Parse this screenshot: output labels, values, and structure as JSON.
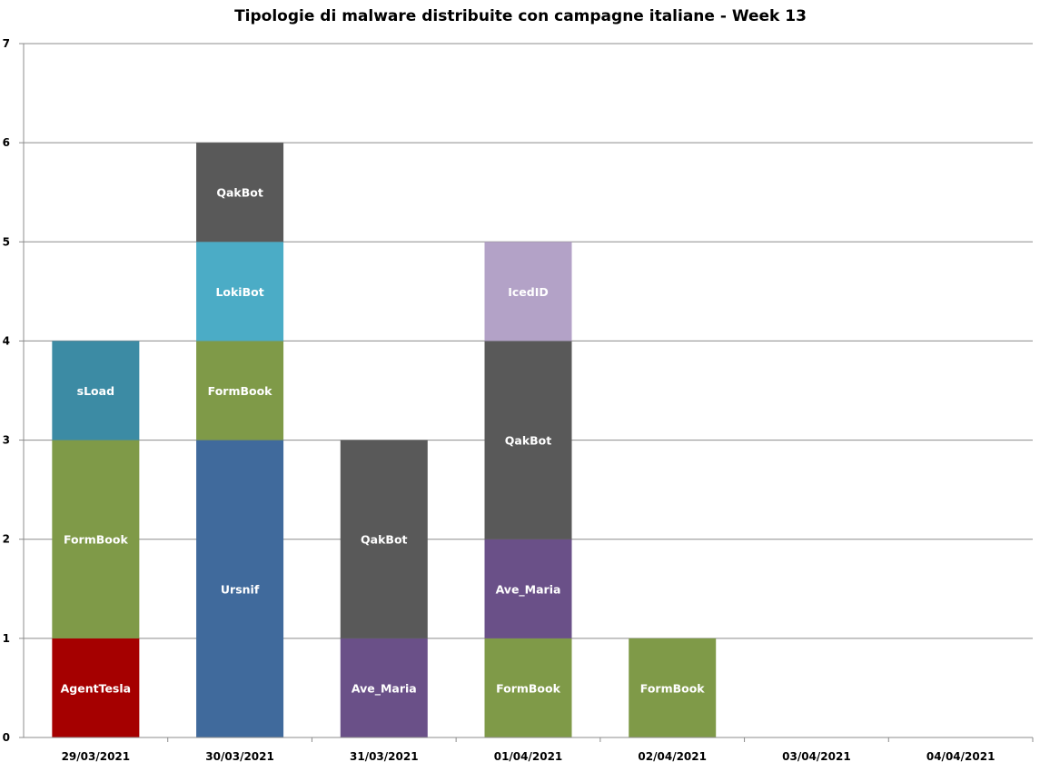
{
  "chart_data": {
    "type": "bar",
    "stacked": true,
    "title": "Tipologie di malware distribuite con campagne italiane - Week 13",
    "xlabel": "",
    "ylabel": "",
    "ylim": [
      0,
      7
    ],
    "yticks": [
      "0",
      "1",
      "2",
      "3",
      "4",
      "5",
      "6",
      "7"
    ],
    "grid": true,
    "legend": "none",
    "categories": [
      "29/03/2021",
      "30/03/2021",
      "31/03/2021",
      "01/04/2021",
      "02/04/2021",
      "03/04/2021",
      "04/04/2021"
    ],
    "stacks": [
      [
        {
          "label": "AgentTesla",
          "value": 1,
          "color": "#a50000"
        },
        {
          "label": "FormBook",
          "value": 2,
          "color": "#7f9a48"
        },
        {
          "label": "sLoad",
          "value": 1,
          "color": "#3c8ba4"
        }
      ],
      [
        {
          "label": "Ursnif",
          "value": 3,
          "color": "#406a9c"
        },
        {
          "label": "FormBook",
          "value": 1,
          "color": "#7f9a48"
        },
        {
          "label": "LokiBot",
          "value": 1,
          "color": "#4bacc6"
        },
        {
          "label": "QakBot",
          "value": 1,
          "color": "#595959"
        }
      ],
      [
        {
          "label": "Ave_Maria",
          "value": 1,
          "color": "#6a5088"
        },
        {
          "label": "QakBot",
          "value": 2,
          "color": "#595959"
        }
      ],
      [
        {
          "label": "FormBook",
          "value": 1,
          "color": "#7f9a48"
        },
        {
          "label": "Ave_Maria",
          "value": 1,
          "color": "#6a5088"
        },
        {
          "label": "QakBot",
          "value": 2,
          "color": "#595959"
        },
        {
          "label": "IcedID",
          "value": 1,
          "color": "#b3a2c7"
        }
      ],
      [
        {
          "label": "FormBook",
          "value": 1,
          "color": "#7f9a48"
        }
      ],
      [],
      []
    ]
  }
}
